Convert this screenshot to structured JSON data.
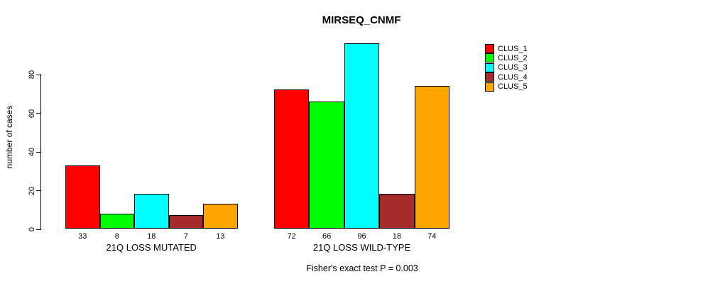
{
  "title": "MIRSEQ_CNMF",
  "ylabel": "number of cases",
  "footer": "Fisher's exact test P = 0.003",
  "colors": {
    "background": "#ffffff",
    "axis": "#000000",
    "text": "#000000"
  },
  "chart_data": {
    "type": "bar",
    "title": "MIRSEQ_CNMF",
    "xlabel": "",
    "ylabel": "number of cases",
    "categories": [
      "21Q LOSS MUTATED",
      "21Q LOSS WILD-TYPE"
    ],
    "series": [
      {
        "name": "CLUS_1",
        "color": "#FF0000",
        "values": [
          33,
          72
        ]
      },
      {
        "name": "CLUS_2",
        "color": "#00FF00",
        "values": [
          8,
          66
        ]
      },
      {
        "name": "CLUS_3",
        "color": "#00FFFF",
        "values": [
          18,
          96
        ]
      },
      {
        "name": "CLUS_4",
        "color": "#A52A2A",
        "values": [
          7,
          18
        ]
      },
      {
        "name": "CLUS_5",
        "color": "#FFA500",
        "values": [
          13,
          74
        ]
      }
    ],
    "bar_value_labels": [
      [
        "33",
        "8",
        "18",
        "7",
        "13"
      ],
      [
        "72",
        "66",
        "96",
        "18",
        "74"
      ]
    ],
    "yticks": [
      0,
      20,
      40,
      60,
      80
    ],
    "ylim": [
      0,
      96
    ],
    "grid": false,
    "legend_position": "top-right",
    "annotation": "Fisher's exact test P = 0.003"
  }
}
